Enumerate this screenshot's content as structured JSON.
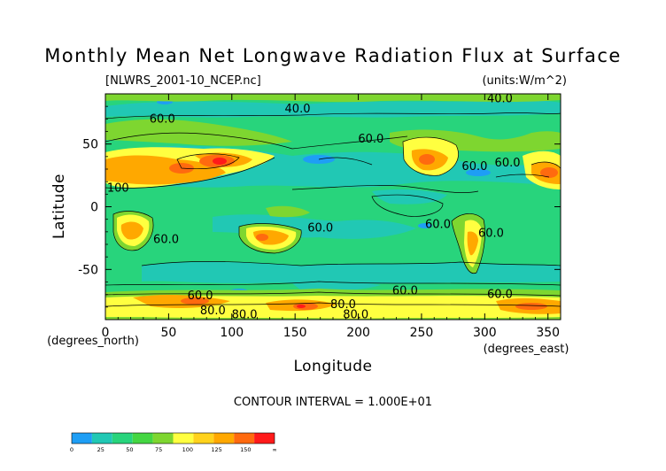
{
  "chart_data": {
    "type": "heatmap",
    "title": "Monthly Mean Net Longwave Radiation Flux at Surface",
    "file_label": "[NLWRS_2001-10_NCEP.nc]",
    "units_label": "(units:W/m^2)",
    "xlabel": "Longitude",
    "ylabel": "Latitude",
    "x_unit_label": "(degrees_east)",
    "y_unit_label": "(degrees_north)",
    "xlim": [
      0,
      360
    ],
    "ylim": [
      -90,
      90
    ],
    "x_ticks": [
      0,
      50,
      100,
      150,
      200,
      250,
      300,
      350
    ],
    "y_ticks": [
      50,
      0,
      -50
    ],
    "contour_interval_text": "CONTOUR INTERVAL = 1.000E+01",
    "contour_labels": [
      {
        "text": "40.0",
        "lon": 152,
        "lat": 78
      },
      {
        "text": "40.0",
        "lon": 312,
        "lat": 86
      },
      {
        "text": "60.0",
        "lon": 45,
        "lat": 70
      },
      {
        "text": "60.0",
        "lon": 210,
        "lat": 54
      },
      {
        "text": "60.0",
        "lon": 292,
        "lat": 32
      },
      {
        "text": "60.0",
        "lon": 318,
        "lat": 35
      },
      {
        "text": "100",
        "lon": 10,
        "lat": 15
      },
      {
        "text": "60.0",
        "lon": 48,
        "lat": -26
      },
      {
        "text": "60.0",
        "lon": 170,
        "lat": -17
      },
      {
        "text": "60.0",
        "lon": 263,
        "lat": -14
      },
      {
        "text": "60.0",
        "lon": 305,
        "lat": -21
      },
      {
        "text": "60.0",
        "lon": 75,
        "lat": -71
      },
      {
        "text": "80.0",
        "lon": 85,
        "lat": -83
      },
      {
        "text": "80.0",
        "lon": 110,
        "lat": -86
      },
      {
        "text": "60.0",
        "lon": 237,
        "lat": -67
      },
      {
        "text": "80.0",
        "lon": 188,
        "lat": -78
      },
      {
        "text": "80.0",
        "lon": 198,
        "lat": -86
      },
      {
        "text": "60.0",
        "lon": 312,
        "lat": -70
      }
    ],
    "colorbar": {
      "levels": [
        0,
        25,
        50,
        75,
        100,
        125,
        150,
        "∞"
      ],
      "colors": [
        "#1e9ef5",
        "#21c8b4",
        "#28d47c",
        "#44d642",
        "#7ed630",
        "#ffff40",
        "#ffd21c",
        "#ffa800",
        "#ff6a0f",
        "#ff1a1a"
      ]
    }
  }
}
